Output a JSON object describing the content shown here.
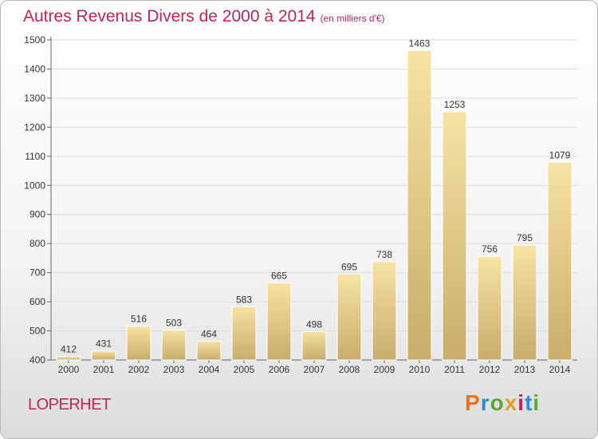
{
  "header": {
    "title": "Autres Revenus Divers de 2000 à 2014",
    "subtitle": "(en milliers d'€)"
  },
  "footer": {
    "place": "LOPERHET",
    "logo_letters": [
      "P",
      "r",
      "o",
      "x",
      "i",
      "t",
      "i"
    ],
    "logo_colors": [
      "#e8731c",
      "#2a8fd0",
      "#5aa832",
      "#e0a020",
      "#c0245a",
      "#2a8fd0",
      "#5aa832"
    ]
  },
  "chart_data": {
    "type": "bar",
    "title": "Autres Revenus Divers de 2000 à 2014",
    "subtitle": "(en milliers d'€)",
    "xlabel": "",
    "ylabel": "",
    "categories": [
      "2000",
      "2001",
      "2002",
      "2003",
      "2004",
      "2005",
      "2006",
      "2007",
      "2008",
      "2009",
      "2010",
      "2011",
      "2012",
      "2013",
      "2014"
    ],
    "values": [
      412,
      431,
      516,
      503,
      464,
      583,
      665,
      498,
      695,
      738,
      1463,
      1253,
      756,
      795,
      1079
    ],
    "ylim": [
      400,
      1500
    ],
    "yticks": [
      400,
      500,
      600,
      700,
      800,
      900,
      1000,
      1100,
      1200,
      1300,
      1400,
      1500
    ],
    "grid": true,
    "legend": "none",
    "bar_color": "#e8d08a",
    "label_color": "#333333"
  }
}
